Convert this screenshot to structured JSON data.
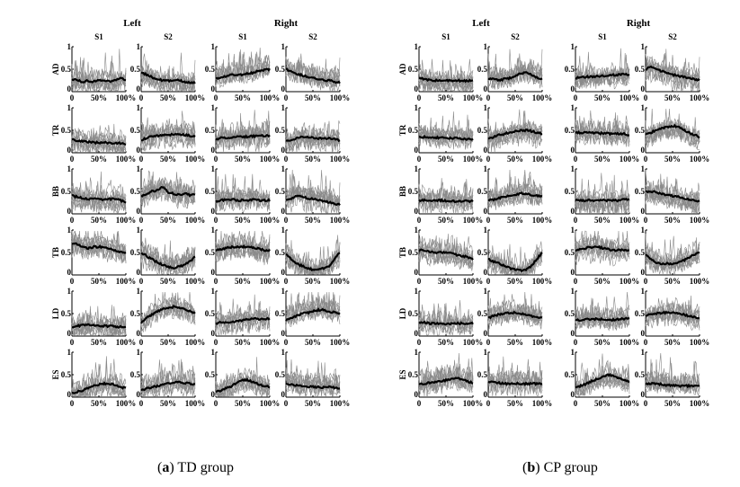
{
  "figure": {
    "side_labels": [
      "Left",
      "Right"
    ],
    "session_labels": [
      "S1",
      "S2"
    ],
    "muscles": [
      "AD",
      "TR",
      "BB",
      "TB",
      "LD",
      "ES"
    ],
    "y_tick_labels": [
      "0",
      "0.5",
      "1"
    ],
    "x_tick_labels": [
      "0",
      "50%",
      "100%"
    ],
    "panel_captions": [
      {
        "letter": "a",
        "text": " TD group"
      },
      {
        "letter": "b",
        "text": " CP group"
      }
    ]
  },
  "chart_data": [
    {
      "type": "line",
      "group": "TD group",
      "rows": [
        "AD",
        "TR",
        "BB",
        "TB",
        "LD",
        "ES"
      ],
      "columns": [
        "Left S1",
        "Left S2",
        "Right S1",
        "Right S2"
      ],
      "x": [
        0,
        10,
        20,
        30,
        40,
        50,
        60,
        70,
        80,
        90,
        100
      ],
      "xlim": [
        0,
        100
      ],
      "ylim": [
        0,
        1
      ],
      "mean_curves": {
        "AD": [
          [
            0.28,
            0.25,
            0.22,
            0.24,
            0.22,
            0.25,
            0.26,
            0.22,
            0.25,
            0.3,
            0.27
          ],
          [
            0.42,
            0.38,
            0.32,
            0.28,
            0.25,
            0.24,
            0.25,
            0.25,
            0.22,
            0.2,
            0.2
          ],
          [
            0.28,
            0.32,
            0.35,
            0.38,
            0.38,
            0.38,
            0.4,
            0.42,
            0.46,
            0.48,
            0.5
          ],
          [
            0.5,
            0.45,
            0.4,
            0.36,
            0.33,
            0.3,
            0.28,
            0.26,
            0.25,
            0.22,
            0.2
          ]
        ],
        "TR": [
          [
            0.3,
            0.27,
            0.25,
            0.24,
            0.23,
            0.22,
            0.23,
            0.22,
            0.22,
            0.21,
            0.2
          ],
          [
            0.28,
            0.33,
            0.36,
            0.38,
            0.38,
            0.4,
            0.4,
            0.42,
            0.4,
            0.38,
            0.36
          ],
          [
            0.3,
            0.33,
            0.33,
            0.33,
            0.35,
            0.35,
            0.36,
            0.37,
            0.38,
            0.38,
            0.38
          ],
          [
            0.25,
            0.28,
            0.32,
            0.35,
            0.35,
            0.33,
            0.32,
            0.33,
            0.32,
            0.3,
            0.28
          ]
        ],
        "BB": [
          [
            0.4,
            0.38,
            0.35,
            0.33,
            0.33,
            0.33,
            0.32,
            0.33,
            0.33,
            0.3,
            0.25
          ],
          [
            0.4,
            0.45,
            0.5,
            0.52,
            0.6,
            0.48,
            0.45,
            0.42,
            0.45,
            0.42,
            0.42
          ],
          [
            0.28,
            0.3,
            0.32,
            0.32,
            0.3,
            0.3,
            0.3,
            0.32,
            0.3,
            0.3,
            0.3
          ],
          [
            0.3,
            0.35,
            0.4,
            0.38,
            0.35,
            0.33,
            0.3,
            0.28,
            0.25,
            0.22,
            0.2
          ]
        ],
        "TB": [
          [
            0.7,
            0.68,
            0.62,
            0.6,
            0.62,
            0.63,
            0.62,
            0.58,
            0.55,
            0.5,
            0.5
          ],
          [
            0.5,
            0.42,
            0.35,
            0.28,
            0.22,
            0.18,
            0.16,
            0.18,
            0.22,
            0.3,
            0.4
          ],
          [
            0.55,
            0.57,
            0.6,
            0.62,
            0.62,
            0.63,
            0.63,
            0.6,
            0.58,
            0.55,
            0.55
          ],
          [
            0.45,
            0.35,
            0.25,
            0.2,
            0.15,
            0.12,
            0.12,
            0.15,
            0.2,
            0.35,
            0.5
          ]
        ],
        "LD": [
          [
            0.2,
            0.22,
            0.24,
            0.25,
            0.24,
            0.23,
            0.22,
            0.22,
            0.21,
            0.2,
            0.2
          ],
          [
            0.3,
            0.4,
            0.48,
            0.55,
            0.6,
            0.62,
            0.65,
            0.63,
            0.6,
            0.55,
            0.5
          ],
          [
            0.28,
            0.3,
            0.3,
            0.32,
            0.33,
            0.35,
            0.37,
            0.38,
            0.38,
            0.38,
            0.38
          ],
          [
            0.35,
            0.4,
            0.45,
            0.5,
            0.52,
            0.55,
            0.58,
            0.58,
            0.55,
            0.52,
            0.5
          ]
        ],
        "ES": [
          [
            0.1,
            0.12,
            0.15,
            0.2,
            0.25,
            0.28,
            0.3,
            0.3,
            0.27,
            0.22,
            0.2
          ],
          [
            0.15,
            0.2,
            0.22,
            0.25,
            0.28,
            0.3,
            0.32,
            0.33,
            0.32,
            0.3,
            0.28
          ],
          [
            0.12,
            0.15,
            0.2,
            0.25,
            0.32,
            0.38,
            0.38,
            0.33,
            0.28,
            0.25,
            0.22
          ],
          [
            0.3,
            0.28,
            0.26,
            0.25,
            0.24,
            0.23,
            0.22,
            0.22,
            0.22,
            0.21,
            0.2
          ]
        ]
      }
    },
    {
      "type": "line",
      "group": "CP group",
      "rows": [
        "AD",
        "TR",
        "BB",
        "TB",
        "LD",
        "ES"
      ],
      "columns": [
        "Left S1",
        "Left S2",
        "Right S1",
        "Right S2"
      ],
      "x": [
        0,
        10,
        20,
        30,
        40,
        50,
        60,
        70,
        80,
        90,
        100
      ],
      "xlim": [
        0,
        100
      ],
      "ylim": [
        0,
        1
      ],
      "mean_curves": {
        "AD": [
          [
            0.3,
            0.28,
            0.26,
            0.25,
            0.25,
            0.24,
            0.25,
            0.25,
            0.24,
            0.24,
            0.25
          ],
          [
            0.3,
            0.28,
            0.26,
            0.28,
            0.3,
            0.35,
            0.4,
            0.42,
            0.38,
            0.32,
            0.28
          ],
          [
            0.3,
            0.32,
            0.33,
            0.33,
            0.34,
            0.35,
            0.36,
            0.37,
            0.38,
            0.38,
            0.38
          ],
          [
            0.5,
            0.55,
            0.5,
            0.45,
            0.42,
            0.38,
            0.35,
            0.33,
            0.3,
            0.28,
            0.25
          ]
        ],
        "TR": [
          [
            0.35,
            0.35,
            0.34,
            0.34,
            0.33,
            0.33,
            0.32,
            0.32,
            0.31,
            0.3,
            0.3
          ],
          [
            0.3,
            0.35,
            0.4,
            0.42,
            0.45,
            0.48,
            0.5,
            0.5,
            0.48,
            0.45,
            0.42
          ],
          [
            0.45,
            0.45,
            0.45,
            0.44,
            0.44,
            0.43,
            0.43,
            0.42,
            0.42,
            0.42,
            0.4
          ],
          [
            0.4,
            0.45,
            0.5,
            0.55,
            0.58,
            0.6,
            0.58,
            0.52,
            0.45,
            0.4,
            0.35
          ]
        ],
        "BB": [
          [
            0.3,
            0.3,
            0.3,
            0.3,
            0.3,
            0.29,
            0.29,
            0.28,
            0.28,
            0.28,
            0.28
          ],
          [
            0.3,
            0.32,
            0.35,
            0.38,
            0.4,
            0.42,
            0.45,
            0.45,
            0.42,
            0.4,
            0.38
          ],
          [
            0.3,
            0.3,
            0.3,
            0.3,
            0.3,
            0.3,
            0.3,
            0.3,
            0.3,
            0.32,
            0.32
          ],
          [
            0.5,
            0.5,
            0.48,
            0.45,
            0.42,
            0.4,
            0.38,
            0.35,
            0.32,
            0.3,
            0.28
          ]
        ],
        "TB": [
          [
            0.55,
            0.55,
            0.52,
            0.5,
            0.5,
            0.5,
            0.48,
            0.45,
            0.42,
            0.4,
            0.35
          ],
          [
            0.35,
            0.3,
            0.25,
            0.2,
            0.15,
            0.12,
            0.1,
            0.12,
            0.2,
            0.35,
            0.5
          ],
          [
            0.55,
            0.58,
            0.6,
            0.62,
            0.62,
            0.6,
            0.58,
            0.55,
            0.55,
            0.55,
            0.55
          ],
          [
            0.45,
            0.35,
            0.28,
            0.25,
            0.25,
            0.25,
            0.28,
            0.32,
            0.38,
            0.45,
            0.5
          ]
        ],
        "LD": [
          [
            0.3,
            0.3,
            0.28,
            0.28,
            0.27,
            0.27,
            0.28,
            0.28,
            0.28,
            0.28,
            0.28
          ],
          [
            0.4,
            0.45,
            0.48,
            0.5,
            0.52,
            0.52,
            0.5,
            0.48,
            0.45,
            0.42,
            0.4
          ],
          [
            0.35,
            0.36,
            0.38,
            0.38,
            0.38,
            0.37,
            0.36,
            0.36,
            0.37,
            0.38,
            0.4
          ],
          [
            0.45,
            0.48,
            0.5,
            0.52,
            0.52,
            0.52,
            0.5,
            0.48,
            0.45,
            0.42,
            0.4
          ]
        ],
        "ES": [
          [
            0.3,
            0.3,
            0.32,
            0.33,
            0.35,
            0.38,
            0.4,
            0.42,
            0.4,
            0.35,
            0.32
          ],
          [
            0.35,
            0.33,
            0.32,
            0.3,
            0.3,
            0.3,
            0.3,
            0.3,
            0.3,
            0.3,
            0.3
          ],
          [
            0.2,
            0.25,
            0.3,
            0.35,
            0.4,
            0.45,
            0.5,
            0.48,
            0.42,
            0.38,
            0.35
          ],
          [
            0.3,
            0.3,
            0.3,
            0.28,
            0.27,
            0.26,
            0.25,
            0.25,
            0.25,
            0.25,
            0.25
          ]
        ]
      }
    }
  ]
}
